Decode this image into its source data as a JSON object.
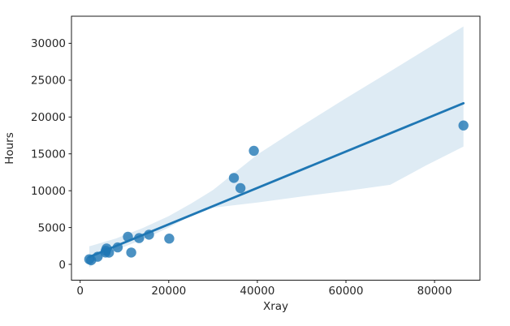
{
  "chart_data": {
    "type": "scatter",
    "title": "",
    "xlabel": "Xray",
    "ylabel": "Hours",
    "xlim": [
      -1967,
      90257
    ],
    "ylim": [
      -2143,
      33681
    ],
    "xticks": [
      0,
      20000,
      40000,
      60000,
      80000
    ],
    "yticks": [
      0,
      5000,
      10000,
      15000,
      20000,
      25000,
      30000
    ],
    "grid": false,
    "legend": null,
    "series": [
      {
        "name": "observations",
        "type": "scatter",
        "points": [
          [
            2048,
            697
          ],
          [
            2463,
            567
          ],
          [
            3940,
            1033
          ],
          [
            5723,
            1611
          ],
          [
            5779,
            1854
          ],
          [
            5969,
            2161
          ],
          [
            6505,
            1604
          ],
          [
            8461,
            2306
          ],
          [
            10771,
            3741
          ],
          [
            11520,
            1613
          ],
          [
            13313,
            3572
          ],
          [
            15543,
            4027
          ],
          [
            20106,
            3504
          ],
          [
            34703,
            11732
          ],
          [
            36194,
            10344
          ],
          [
            39204,
            15415
          ],
          [
            86533,
            18854
          ]
        ]
      },
      {
        "name": "linear-fit",
        "type": "line",
        "points": [
          [
            2048,
            1000
          ],
          [
            86533,
            21870
          ]
        ]
      },
      {
        "name": "confidence-band",
        "type": "area",
        "top": [
          [
            2048,
            2450
          ],
          [
            8000,
            3500
          ],
          [
            14000,
            4900
          ],
          [
            20000,
            6550
          ],
          [
            25000,
            8250
          ],
          [
            30000,
            10100
          ],
          [
            40000,
            14900
          ],
          [
            50000,
            18800
          ],
          [
            60000,
            22550
          ],
          [
            70000,
            26200
          ],
          [
            80000,
            29900
          ],
          [
            86533,
            32290
          ]
        ],
        "bottom": [
          [
            2048,
            -400
          ],
          [
            6000,
            1300
          ],
          [
            10000,
            2400
          ],
          [
            15000,
            3600
          ],
          [
            20000,
            5000
          ],
          [
            24000,
            6300
          ],
          [
            30000,
            7700
          ],
          [
            40000,
            8400
          ],
          [
            50000,
            9200
          ],
          [
            60000,
            9960
          ],
          [
            70000,
            10800
          ],
          [
            78000,
            13400
          ],
          [
            86533,
            15990
          ]
        ]
      }
    ],
    "colors": {
      "point": "#1f77b4",
      "point_opacity": 0.8,
      "line": "#1f77b4",
      "band": "#1f77b4",
      "band_opacity": 0.15,
      "axis": "#1a1a1a",
      "text": "#262626",
      "background": "#ffffff"
    }
  }
}
